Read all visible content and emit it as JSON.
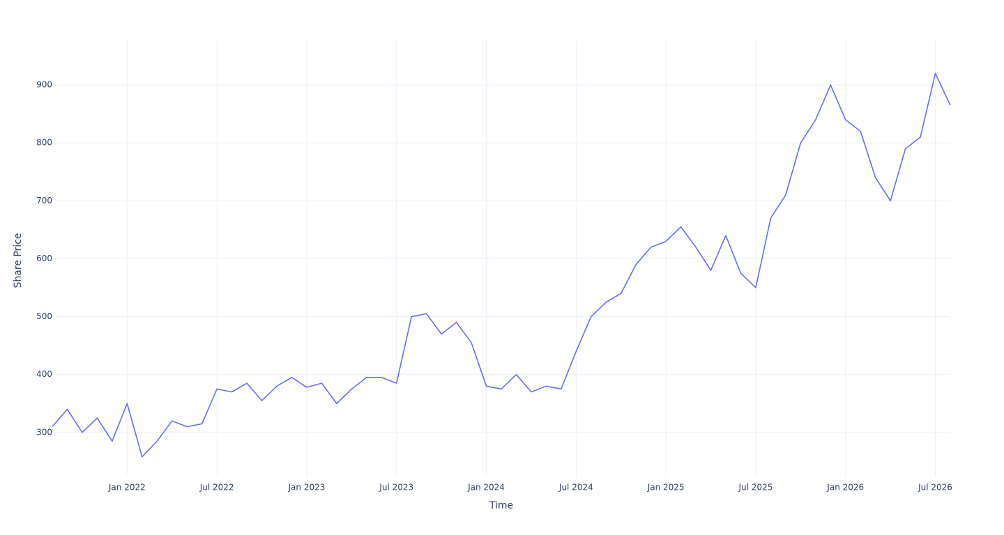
{
  "chart_data": {
    "type": "line",
    "x_label": "Time",
    "y_label": "Share Price",
    "x": [
      "2021-08",
      "2021-09",
      "2021-10",
      "2021-11",
      "2021-12",
      "2022-01",
      "2022-02",
      "2022-03",
      "2022-04",
      "2022-05",
      "2022-06",
      "2022-07",
      "2022-08",
      "2022-09",
      "2022-10",
      "2022-11",
      "2022-12",
      "2023-01",
      "2023-02",
      "2023-03",
      "2023-04",
      "2023-05",
      "2023-06",
      "2023-07",
      "2023-08",
      "2023-09",
      "2023-10",
      "2023-11",
      "2023-12",
      "2024-01",
      "2024-02",
      "2024-03",
      "2024-04",
      "2024-05",
      "2024-06",
      "2024-07",
      "2024-08",
      "2024-09",
      "2024-10",
      "2024-11",
      "2024-12",
      "2025-01",
      "2025-02",
      "2025-03",
      "2025-04",
      "2025-05",
      "2025-06",
      "2025-07",
      "2025-08",
      "2025-09",
      "2025-10",
      "2025-11",
      "2025-12",
      "2026-01",
      "2026-02",
      "2026-03",
      "2026-04",
      "2026-05",
      "2026-06",
      "2026-07",
      "2026-08"
    ],
    "series": [
      {
        "color": "#636efa",
        "values": [
          310,
          340,
          300,
          325,
          285,
          350,
          258,
          285,
          320,
          310,
          315,
          375,
          370,
          385,
          355,
          380,
          395,
          378,
          385,
          350,
          375,
          395,
          395,
          385,
          500,
          505,
          470,
          490,
          455,
          380,
          375,
          400,
          370,
          380,
          375,
          440,
          500,
          525,
          540,
          590,
          620,
          630,
          655,
          620,
          580,
          640,
          575,
          550,
          670,
          710,
          800,
          840,
          900,
          840,
          820,
          740,
          700,
          790,
          810,
          920,
          865
        ]
      }
    ],
    "xlim": [
      "2021-08",
      "2026-08"
    ],
    "xticks": [
      {
        "value": "2022-01",
        "label": "Jan 2022"
      },
      {
        "value": "2022-07",
        "label": "Jul 2022"
      },
      {
        "value": "2023-01",
        "label": "Jan 2023"
      },
      {
        "value": "2023-07",
        "label": "Jul 2023"
      },
      {
        "value": "2024-01",
        "label": "Jan 2024"
      },
      {
        "value": "2024-07",
        "label": "Jul 2024"
      },
      {
        "value": "2025-01",
        "label": "Jan 2025"
      },
      {
        "value": "2025-07",
        "label": "Jul 2025"
      },
      {
        "value": "2026-01",
        "label": "Jan 2026"
      },
      {
        "value": "2026-07",
        "label": "Jul 2026"
      }
    ],
    "ylim": [
      224,
      977
    ],
    "yticks": [
      300,
      400,
      500,
      600,
      700,
      800,
      900
    ],
    "grid": true
  }
}
